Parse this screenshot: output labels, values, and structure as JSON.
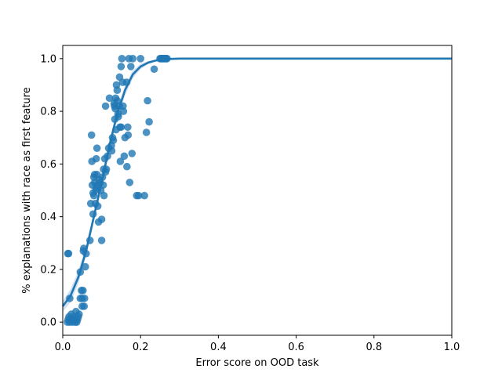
{
  "chart_data": {
    "type": "scatter",
    "title": "",
    "xlabel": "Error score on OOD task",
    "ylabel": "% explanations with race as first feature",
    "xlim": [
      0.0,
      1.0
    ],
    "ylim": [
      -0.05,
      1.05
    ],
    "xticks": [
      "0.0",
      "0.2",
      "0.4",
      "0.6",
      "0.8",
      "1.0"
    ],
    "yticks": [
      "0.0",
      "0.2",
      "0.4",
      "0.6",
      "0.8",
      "1.0"
    ],
    "grid": false,
    "colors": {
      "points": "#1f77b4",
      "fit": "#1f77b4",
      "band": "#aec7e8"
    },
    "points": [
      [
        0.015,
        0.26
      ],
      [
        0.013,
        0.26
      ],
      [
        0.012,
        0.0
      ],
      [
        0.014,
        0.01
      ],
      [
        0.016,
        0.02
      ],
      [
        0.018,
        0.0
      ],
      [
        0.02,
        0.01
      ],
      [
        0.022,
        0.03
      ],
      [
        0.025,
        0.0
      ],
      [
        0.028,
        0.02
      ],
      [
        0.03,
        0.01
      ],
      [
        0.032,
        0.0
      ],
      [
        0.034,
        0.04
      ],
      [
        0.036,
        0.0
      ],
      [
        0.038,
        0.01
      ],
      [
        0.04,
        0.02
      ],
      [
        0.042,
        0.03
      ],
      [
        0.018,
        0.09
      ],
      [
        0.045,
        0.09
      ],
      [
        0.045,
        0.19
      ],
      [
        0.048,
        0.12
      ],
      [
        0.05,
        0.06
      ],
      [
        0.05,
        0.09
      ],
      [
        0.052,
        0.12
      ],
      [
        0.053,
        0.27
      ],
      [
        0.054,
        0.28
      ],
      [
        0.055,
        0.06
      ],
      [
        0.056,
        0.09
      ],
      [
        0.058,
        0.21
      ],
      [
        0.06,
        0.26
      ],
      [
        0.07,
        0.31
      ],
      [
        0.072,
        0.45
      ],
      [
        0.074,
        0.71
      ],
      [
        0.075,
        0.61
      ],
      [
        0.076,
        0.52
      ],
      [
        0.078,
        0.49
      ],
      [
        0.078,
        0.41
      ],
      [
        0.08,
        0.55
      ],
      [
        0.08,
        0.48
      ],
      [
        0.082,
        0.56
      ],
      [
        0.082,
        0.53
      ],
      [
        0.084,
        0.45
      ],
      [
        0.085,
        0.5
      ],
      [
        0.086,
        0.51
      ],
      [
        0.086,
        0.62
      ],
      [
        0.088,
        0.66
      ],
      [
        0.088,
        0.56
      ],
      [
        0.09,
        0.52
      ],
      [
        0.09,
        0.44
      ],
      [
        0.092,
        0.38
      ],
      [
        0.094,
        0.54
      ],
      [
        0.096,
        0.53
      ],
      [
        0.098,
        0.5
      ],
      [
        0.1,
        0.39
      ],
      [
        0.1,
        0.31
      ],
      [
        0.102,
        0.55
      ],
      [
        0.104,
        0.52
      ],
      [
        0.105,
        0.58
      ],
      [
        0.106,
        0.48
      ],
      [
        0.108,
        0.62
      ],
      [
        0.11,
        0.57
      ],
      [
        0.11,
        0.82
      ],
      [
        0.112,
        0.58
      ],
      [
        0.115,
        0.63
      ],
      [
        0.118,
        0.66
      ],
      [
        0.12,
        0.85
      ],
      [
        0.125,
        0.67
      ],
      [
        0.126,
        0.65
      ],
      [
        0.128,
        0.7
      ],
      [
        0.13,
        0.69
      ],
      [
        0.132,
        0.83
      ],
      [
        0.133,
        0.82
      ],
      [
        0.134,
        0.77
      ],
      [
        0.135,
        0.81
      ],
      [
        0.136,
        0.85
      ],
      [
        0.137,
        0.73
      ],
      [
        0.138,
        0.9
      ],
      [
        0.14,
        0.88
      ],
      [
        0.14,
        0.84
      ],
      [
        0.142,
        0.79
      ],
      [
        0.143,
        0.78
      ],
      [
        0.145,
        0.82
      ],
      [
        0.146,
        0.93
      ],
      [
        0.147,
        0.74
      ],
      [
        0.148,
        0.61
      ],
      [
        0.15,
        0.74
      ],
      [
        0.15,
        0.97
      ],
      [
        0.152,
        1.0
      ],
      [
        0.154,
        0.91
      ],
      [
        0.155,
        0.82
      ],
      [
        0.156,
        0.8
      ],
      [
        0.158,
        0.63
      ],
      [
        0.16,
        0.7
      ],
      [
        0.164,
        0.91
      ],
      [
        0.165,
        0.59
      ],
      [
        0.167,
        0.74
      ],
      [
        0.168,
        0.71
      ],
      [
        0.17,
        1.0
      ],
      [
        0.172,
        0.53
      ],
      [
        0.175,
        0.97
      ],
      [
        0.178,
        0.64
      ],
      [
        0.18,
        1.0
      ],
      [
        0.19,
        0.48
      ],
      [
        0.195,
        0.48
      ],
      [
        0.2,
        1.0
      ],
      [
        0.21,
        0.48
      ],
      [
        0.215,
        0.72
      ],
      [
        0.218,
        0.84
      ],
      [
        0.222,
        0.76
      ],
      [
        0.235,
        0.96
      ],
      [
        0.25,
        1.0
      ],
      [
        0.252,
        1.0
      ],
      [
        0.254,
        1.0
      ],
      [
        0.256,
        1.0
      ],
      [
        0.258,
        1.0
      ],
      [
        0.26,
        1.0
      ],
      [
        0.262,
        1.0
      ],
      [
        0.264,
        1.0
      ],
      [
        0.266,
        1.0
      ],
      [
        0.268,
        1.0
      ]
    ],
    "fit": {
      "x": [
        0.0,
        0.02,
        0.04,
        0.06,
        0.08,
        0.1,
        0.12,
        0.14,
        0.16,
        0.18,
        0.2,
        0.22,
        0.24,
        0.26,
        0.28,
        0.3,
        0.35,
        0.4,
        0.5,
        0.6,
        0.7,
        0.8,
        0.9,
        1.0
      ],
      "y": [
        0.06,
        0.1,
        0.17,
        0.27,
        0.4,
        0.53,
        0.67,
        0.79,
        0.88,
        0.94,
        0.97,
        0.985,
        0.993,
        0.997,
        0.999,
        1.0,
        1.0,
        1.0,
        1.0,
        1.0,
        1.0,
        1.0,
        1.0,
        1.0
      ],
      "band": [
        0.02,
        0.025,
        0.025,
        0.02,
        0.02,
        0.02,
        0.02,
        0.02,
        0.02,
        0.015,
        0.01,
        0.006,
        0.003,
        0.002,
        0.001,
        0.0,
        0.0,
        0.0,
        0.0,
        0.0,
        0.0,
        0.0,
        0.0,
        0.0
      ]
    }
  }
}
